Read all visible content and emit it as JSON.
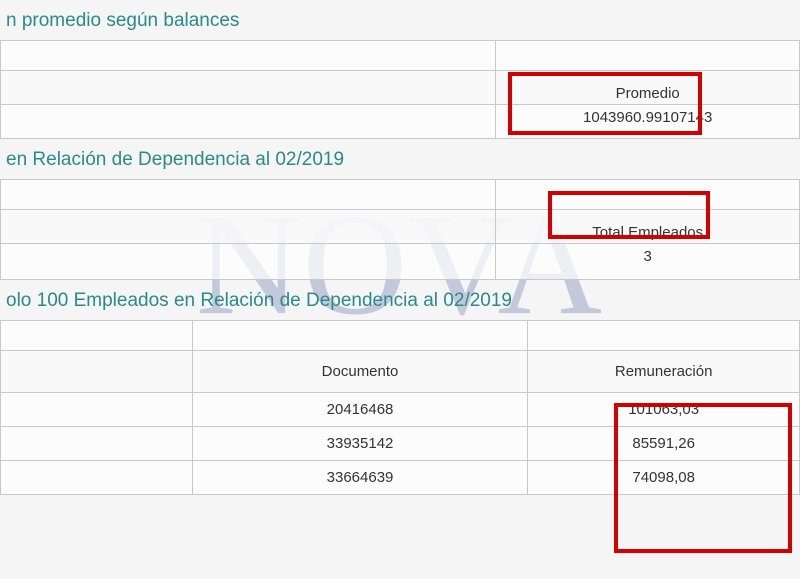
{
  "watermark_text": "NOVA",
  "section1": {
    "title": "n promedio según balances",
    "header": "Promedio",
    "value": "1043960.99107143"
  },
  "section2": {
    "title": " en Relación de Dependencia al 02/2019",
    "header": "Total Empleados",
    "value": "3"
  },
  "section3": {
    "title": "olo 100 Empleados en Relación de Dependencia al 02/2019",
    "columns": {
      "c1": "",
      "c2": "Documento",
      "c3": "Remuneración"
    },
    "rows": [
      {
        "c1": "",
        "c2": "20416468",
        "c3": "101063,03"
      },
      {
        "c1": "",
        "c2": "33935142",
        "c3": "85591,26"
      },
      {
        "c1": "",
        "c2": "33664639",
        "c3": "74098,08"
      }
    ]
  }
}
